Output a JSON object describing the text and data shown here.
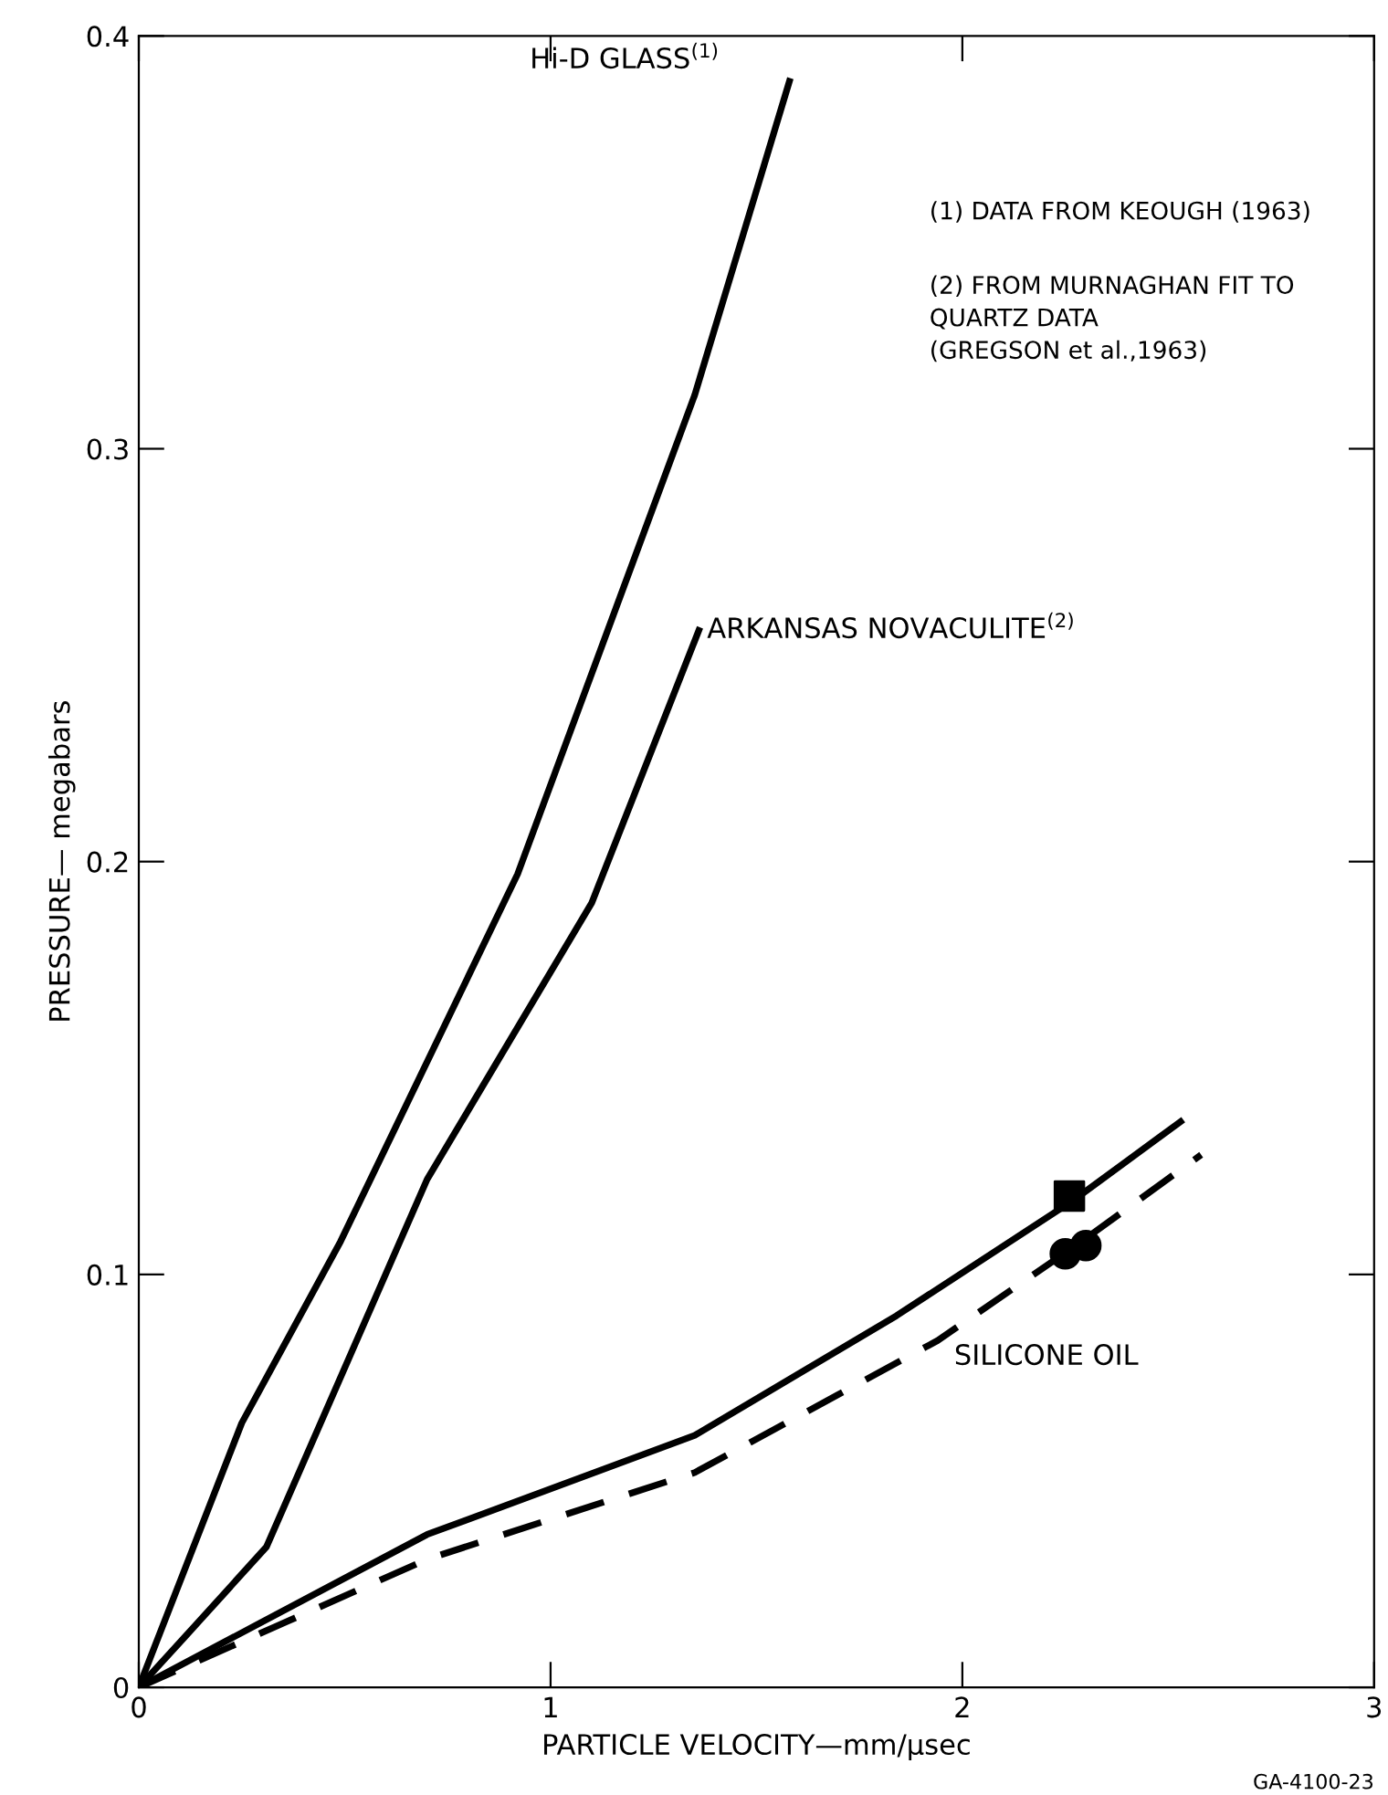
{
  "chart_data": {
    "type": "line",
    "xlabel": "PARTICLE VELOCITY—mm/μsec",
    "ylabel": "PRESSURE— megabars",
    "xlim": [
      0,
      3
    ],
    "ylim": [
      0,
      0.4
    ],
    "xticks": [
      0,
      1,
      2,
      3
    ],
    "yticks": [
      0,
      0.1,
      0.2,
      0.3,
      0.4
    ],
    "grid": false,
    "legend": false,
    "series": [
      {
        "name": "Hi-D GLASS$^{(1)}$",
        "color": "#000000",
        "line_style": "solid",
        "x": [
          0,
          0.25,
          0.49,
          0.92,
          1.35,
          1.58
        ],
        "values": [
          0,
          0.064,
          0.108,
          0.197,
          0.313,
          0.389
        ]
      },
      {
        "name": "ARKANSAS NOVACULITE$^{(2)}$",
        "color": "#000000",
        "line_style": "solid",
        "x": [
          0,
          0.11,
          0.31,
          0.7,
          1.1,
          1.36
        ],
        "values": [
          0,
          0.012,
          0.034,
          0.123,
          0.19,
          0.256
        ]
      },
      {
        "color": "#000000",
        "line_style": "solid",
        "x": [
          0,
          0.7,
          1.35,
          1.84,
          2.27,
          2.53
        ],
        "values": [
          0,
          0.037,
          0.061,
          0.09,
          0.118,
          0.137
        ]
      },
      {
        "name": "SILICONE OIL",
        "color": "#000000",
        "line_style": "dashed",
        "x": [
          0,
          0.7,
          1.35,
          1.94,
          2.29,
          2.58
        ],
        "values": [
          0,
          0.031,
          0.052,
          0.084,
          0.108,
          0.129
        ]
      },
      {
        "type": "scatter",
        "marker": "square",
        "color": "#000000",
        "x": [
          2.26
        ],
        "values": [
          0.119
        ]
      },
      {
        "type": "scatter",
        "marker": "circle",
        "color": "#000000",
        "x": [
          2.25,
          2.3
        ],
        "values": [
          0.105,
          0.107
        ]
      }
    ],
    "annotations": [
      "(1) DATA FROM KEOUGH (1963)",
      "(2) FROM MURNAGHAN FIT TO\nQUARTZ DATA\n(GREGSON et al.,1963)",
      "GA-4100-23"
    ]
  }
}
